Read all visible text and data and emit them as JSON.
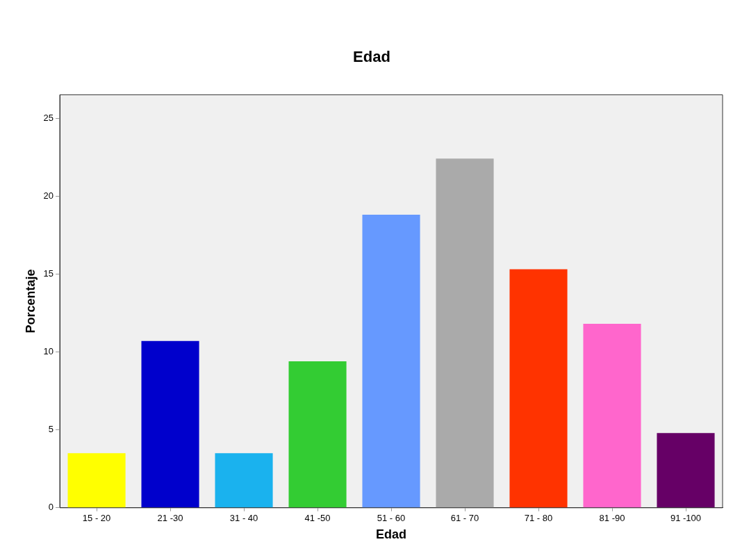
{
  "chart_data": {
    "type": "bar",
    "title": "Edad",
    "xlabel": "Edad",
    "ylabel": "Porcentaje",
    "categories": [
      "15 - 20",
      "21 -30",
      "31 - 40",
      "41 -50",
      "51 - 60",
      "61 - 70",
      "71 - 80",
      "81 -90",
      "91 -100"
    ],
    "values": [
      3.5,
      10.7,
      3.5,
      9.4,
      18.8,
      22.4,
      15.3,
      11.8,
      4.8
    ],
    "colors": [
      "#ffff00",
      "#0000cc",
      "#1ab2ee",
      "#33cc33",
      "#6699ff",
      "#aaaaaa",
      "#ff3300",
      "#ff66cc",
      "#660066"
    ],
    "ylim": [
      0,
      26.5
    ],
    "yticks": [
      0,
      5,
      10,
      15,
      20,
      25
    ],
    "grid": false,
    "legend": false
  }
}
